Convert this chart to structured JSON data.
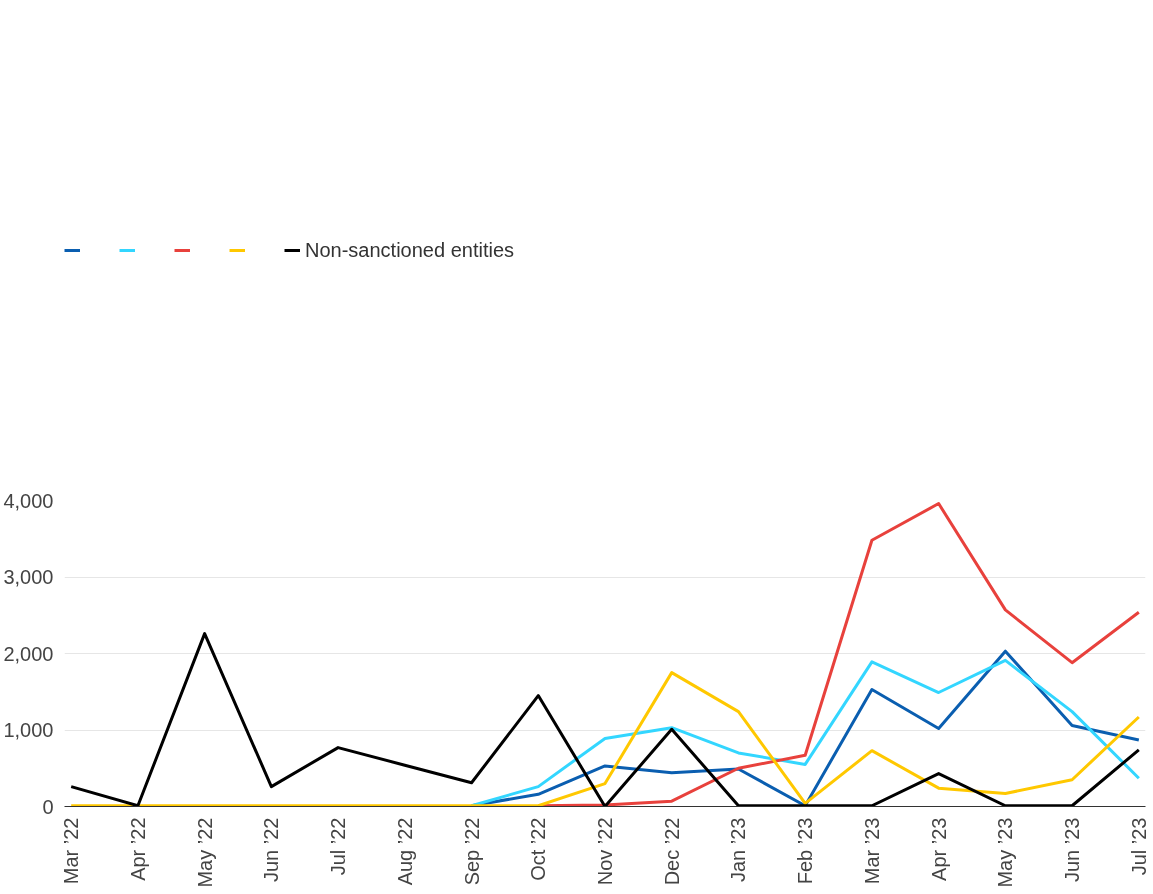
{
  "chart_data": {
    "type": "line",
    "categories": [
      "Mar ’22",
      "Apr ’22",
      "May ’22",
      "Jun ’22",
      "Jul ’22",
      "Aug ’22",
      "Sep ’22",
      "Oct ’22",
      "Nov ’22",
      "Dec ’22",
      "Jan ’23",
      "Feb ’23",
      "Mar ’23",
      "Apr ’23",
      "May ’23",
      "Jun ’23",
      "Jul ’23"
    ],
    "series": [
      {
        "color": "#0a5eb0",
        "values": [
          null,
          null,
          null,
          null,
          null,
          null,
          10,
          160,
          530,
          440,
          490,
          10,
          1530,
          1020,
          2030,
          1060,
          870
        ]
      },
      {
        "color": "#33d6ff",
        "values": [
          null,
          null,
          null,
          null,
          null,
          null,
          10,
          260,
          890,
          1030,
          700,
          550,
          1890,
          1490,
          1910,
          1240,
          370
        ]
      },
      {
        "color": "#e8413c",
        "values": [
          null,
          null,
          null,
          null,
          null,
          null,
          null,
          10,
          20,
          70,
          500,
          670,
          3480,
          3960,
          2570,
          1880,
          2540
        ]
      },
      {
        "color": "#ffc800",
        "values": [
          10,
          10,
          10,
          10,
          10,
          10,
          10,
          10,
          300,
          1750,
          1240,
          40,
          730,
          240,
          170,
          350,
          1170
        ]
      },
      {
        "name": "Non-sanctioned entities",
        "color": "#000000",
        "values": [
          260,
          10,
          2260,
          260,
          770,
          540,
          310,
          1450,
          0,
          1010,
          10,
          10,
          10,
          430,
          10,
          10,
          740
        ]
      }
    ],
    "ylim": [
      0,
      4000
    ],
    "yticks": [
      0,
      {
        "value": 1000,
        "label": "1,000"
      },
      {
        "value": 2000,
        "label": "2,000"
      },
      {
        "value": 3000,
        "label": "3,000"
      },
      {
        "value": 4000,
        "label": "4,000"
      }
    ],
    "grid": "y",
    "legend": "top left",
    "marker": "none",
    "line_style": "solid"
  }
}
